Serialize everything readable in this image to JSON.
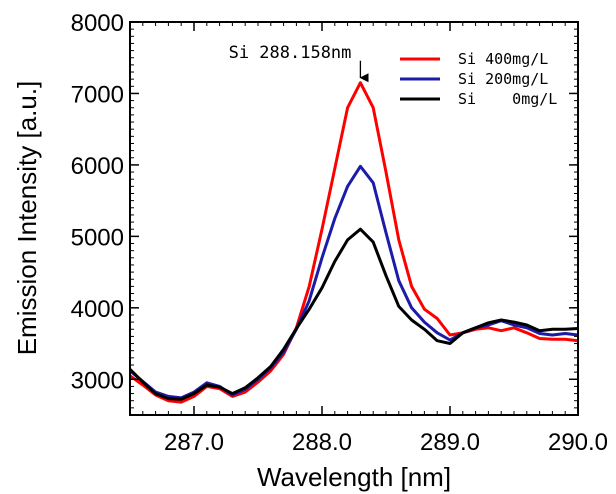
{
  "chart_data": {
    "type": "line",
    "xlabel": "Wavelength [nm]",
    "ylabel": "Emission Intensity [a.u.]",
    "xlim": [
      286.5,
      290.0
    ],
    "ylim": [
      2500,
      8000
    ],
    "xticks": [
      287.0,
      288.0,
      289.0,
      290.0
    ],
    "xtick_labels": [
      "287.0",
      "288.0",
      "289.0",
      "290.0"
    ],
    "yticks": [
      3000,
      4000,
      5000,
      6000,
      7000,
      8000
    ],
    "ytick_labels": [
      "3000",
      "4000",
      "5000",
      "6000",
      "7000",
      "8000"
    ],
    "grid": false,
    "legend_position": "top-right",
    "annotation": {
      "text": "Si 288.158nm",
      "x": 288.3,
      "y": 7150
    },
    "series": [
      {
        "name": "Si 400mg/L",
        "color": "#ff0000",
        "points": [
          [
            286.5,
            3050
          ],
          [
            286.6,
            2920
          ],
          [
            286.7,
            2780
          ],
          [
            286.8,
            2700
          ],
          [
            286.9,
            2680
          ],
          [
            287.0,
            2760
          ],
          [
            287.1,
            2900
          ],
          [
            287.2,
            2870
          ],
          [
            287.3,
            2760
          ],
          [
            287.4,
            2820
          ],
          [
            287.5,
            2960
          ],
          [
            287.6,
            3120
          ],
          [
            287.7,
            3350
          ],
          [
            287.8,
            3720
          ],
          [
            287.9,
            4300
          ],
          [
            288.0,
            5100
          ],
          [
            288.1,
            5950
          ],
          [
            288.2,
            6800
          ],
          [
            288.3,
            7150
          ],
          [
            288.4,
            6800
          ],
          [
            288.5,
            5900
          ],
          [
            288.6,
            4950
          ],
          [
            288.7,
            4300
          ],
          [
            288.8,
            3980
          ],
          [
            288.9,
            3850
          ],
          [
            289.0,
            3620
          ],
          [
            289.1,
            3650
          ],
          [
            289.2,
            3700
          ],
          [
            289.3,
            3720
          ],
          [
            289.4,
            3680
          ],
          [
            289.5,
            3720
          ],
          [
            289.6,
            3650
          ],
          [
            289.7,
            3570
          ],
          [
            289.8,
            3560
          ],
          [
            289.9,
            3560
          ],
          [
            290.0,
            3540
          ]
        ]
      },
      {
        "name": "Si 200mg/L",
        "color": "#1c1ca8",
        "points": [
          [
            286.5,
            3120
          ],
          [
            286.6,
            2970
          ],
          [
            286.7,
            2820
          ],
          [
            286.8,
            2760
          ],
          [
            286.9,
            2740
          ],
          [
            287.0,
            2820
          ],
          [
            287.1,
            2950
          ],
          [
            287.2,
            2900
          ],
          [
            287.3,
            2780
          ],
          [
            287.4,
            2860
          ],
          [
            287.5,
            3000
          ],
          [
            287.6,
            3160
          ],
          [
            287.7,
            3380
          ],
          [
            287.8,
            3700
          ],
          [
            287.9,
            4100
          ],
          [
            288.0,
            4700
          ],
          [
            288.1,
            5250
          ],
          [
            288.2,
            5700
          ],
          [
            288.3,
            5980
          ],
          [
            288.4,
            5750
          ],
          [
            288.5,
            5050
          ],
          [
            288.6,
            4380
          ],
          [
            288.7,
            4000
          ],
          [
            288.8,
            3800
          ],
          [
            288.9,
            3650
          ],
          [
            289.0,
            3550
          ],
          [
            289.1,
            3650
          ],
          [
            289.2,
            3720
          ],
          [
            289.3,
            3760
          ],
          [
            289.4,
            3820
          ],
          [
            289.5,
            3760
          ],
          [
            289.6,
            3720
          ],
          [
            289.7,
            3640
          ],
          [
            289.8,
            3620
          ],
          [
            289.9,
            3640
          ],
          [
            290.0,
            3620
          ]
        ]
      },
      {
        "name": "Si    0mg/L",
        "color": "#000000",
        "points": [
          [
            286.5,
            3140
          ],
          [
            286.6,
            2960
          ],
          [
            286.7,
            2800
          ],
          [
            286.8,
            2730
          ],
          [
            286.9,
            2720
          ],
          [
            287.0,
            2800
          ],
          [
            287.1,
            2920
          ],
          [
            287.2,
            2890
          ],
          [
            287.3,
            2800
          ],
          [
            287.4,
            2880
          ],
          [
            287.5,
            3020
          ],
          [
            287.6,
            3180
          ],
          [
            287.7,
            3420
          ],
          [
            287.8,
            3710
          ],
          [
            287.9,
            3980
          ],
          [
            288.0,
            4280
          ],
          [
            288.1,
            4650
          ],
          [
            288.2,
            4950
          ],
          [
            288.3,
            5100
          ],
          [
            288.4,
            4920
          ],
          [
            288.5,
            4450
          ],
          [
            288.6,
            4020
          ],
          [
            288.7,
            3830
          ],
          [
            288.8,
            3700
          ],
          [
            288.9,
            3540
          ],
          [
            289.0,
            3500
          ],
          [
            289.1,
            3650
          ],
          [
            289.2,
            3720
          ],
          [
            289.3,
            3790
          ],
          [
            289.4,
            3830
          ],
          [
            289.5,
            3800
          ],
          [
            289.6,
            3760
          ],
          [
            289.7,
            3680
          ],
          [
            289.8,
            3700
          ],
          [
            289.9,
            3700
          ],
          [
            290.0,
            3710
          ]
        ]
      }
    ]
  }
}
